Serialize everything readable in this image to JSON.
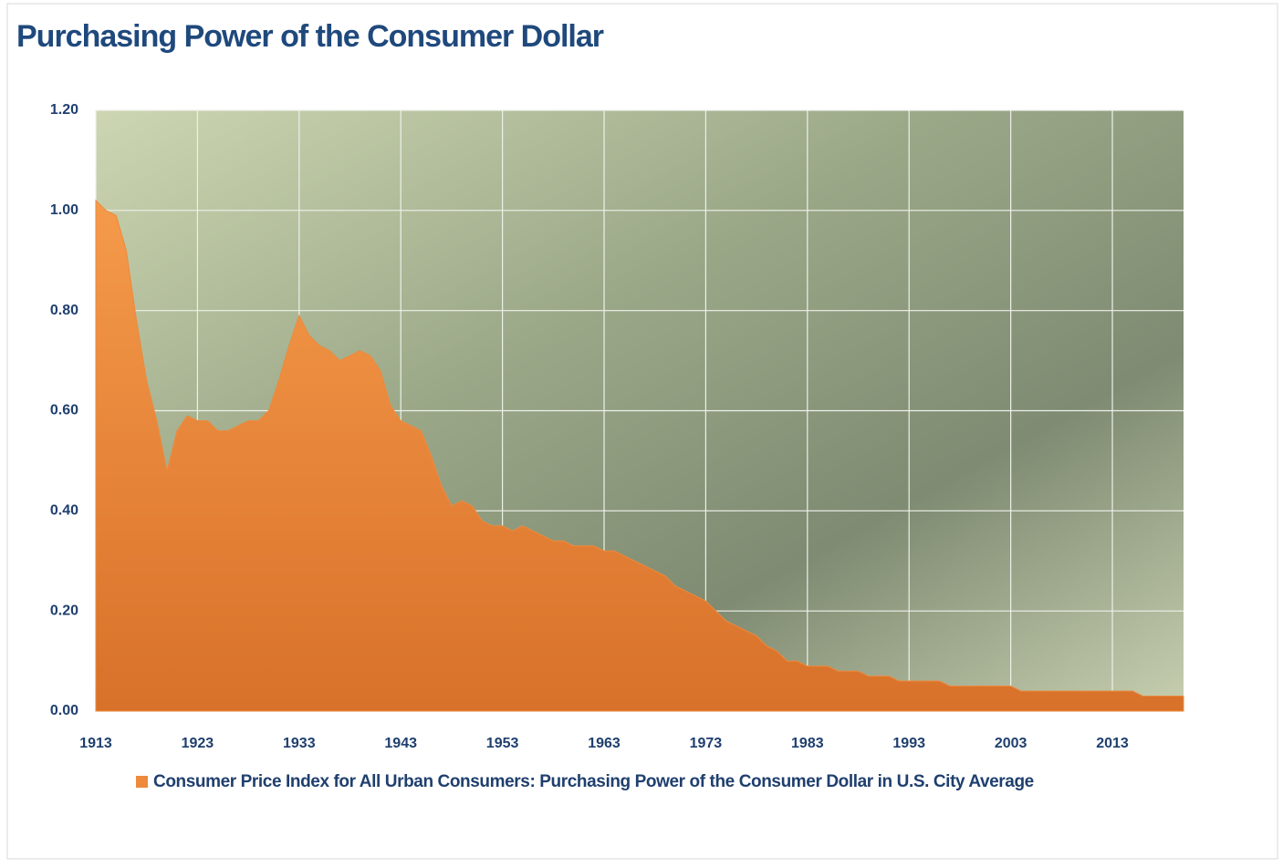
{
  "chart_data": {
    "type": "area",
    "title": "Purchasing Power of the Consumer Dollar",
    "x": [
      1913,
      1914,
      1915,
      1916,
      1917,
      1918,
      1919,
      1920,
      1921,
      1922,
      1923,
      1924,
      1925,
      1926,
      1927,
      1928,
      1929,
      1930,
      1931,
      1932,
      1933,
      1934,
      1935,
      1936,
      1937,
      1938,
      1939,
      1940,
      1941,
      1942,
      1943,
      1944,
      1945,
      1946,
      1947,
      1948,
      1949,
      1950,
      1951,
      1952,
      1953,
      1954,
      1955,
      1956,
      1957,
      1958,
      1959,
      1960,
      1961,
      1962,
      1963,
      1964,
      1965,
      1966,
      1967,
      1968,
      1969,
      1970,
      1971,
      1972,
      1973,
      1974,
      1975,
      1976,
      1977,
      1978,
      1979,
      1980,
      1981,
      1982,
      1983,
      1984,
      1985,
      1986,
      1987,
      1988,
      1989,
      1990,
      1991,
      1992,
      1993,
      1994,
      1995,
      1996,
      1997,
      1998,
      1999,
      2000,
      2001,
      2002,
      2003,
      2004,
      2005,
      2006,
      2007,
      2008,
      2009,
      2010,
      2011,
      2012,
      2013,
      2014,
      2015,
      2016,
      2017,
      2018,
      2019,
      2020
    ],
    "series": [
      {
        "name": "Consumer Price Index for All Urban Consumers: Purchasing Power of the Consumer Dollar in U.S. City Average",
        "color": "#ed8a3c",
        "values": [
          1.02,
          1.0,
          0.99,
          0.92,
          0.78,
          0.66,
          0.58,
          0.48,
          0.56,
          0.59,
          0.58,
          0.58,
          0.56,
          0.56,
          0.57,
          0.58,
          0.58,
          0.6,
          0.66,
          0.73,
          0.79,
          0.75,
          0.73,
          0.72,
          0.7,
          0.71,
          0.72,
          0.71,
          0.68,
          0.61,
          0.58,
          0.57,
          0.56,
          0.51,
          0.45,
          0.41,
          0.42,
          0.41,
          0.38,
          0.37,
          0.37,
          0.36,
          0.37,
          0.36,
          0.35,
          0.34,
          0.34,
          0.33,
          0.33,
          0.33,
          0.32,
          0.32,
          0.31,
          0.3,
          0.29,
          0.28,
          0.27,
          0.25,
          0.24,
          0.23,
          0.22,
          0.2,
          0.18,
          0.17,
          0.16,
          0.15,
          0.13,
          0.12,
          0.1,
          0.1,
          0.09,
          0.09,
          0.09,
          0.08,
          0.08,
          0.08,
          0.07,
          0.07,
          0.07,
          0.06,
          0.06,
          0.06,
          0.06,
          0.06,
          0.05,
          0.05,
          0.05,
          0.05,
          0.05,
          0.05,
          0.05,
          0.04,
          0.04,
          0.04,
          0.04,
          0.04,
          0.04,
          0.04,
          0.04,
          0.04,
          0.04,
          0.04,
          0.04,
          0.03,
          0.03,
          0.03,
          0.03,
          0.03
        ]
      }
    ],
    "xlim": [
      1913,
      2020
    ],
    "xticks": [
      1913,
      1923,
      1933,
      1943,
      1953,
      1963,
      1973,
      1983,
      1993,
      2003,
      2013
    ],
    "ylim": [
      0,
      1.2
    ],
    "yticks": [
      {
        "value": 0,
        "label": "0.00"
      },
      {
        "value": 0.2,
        "label": "0.20"
      },
      {
        "value": 0.4,
        "label": "0.40"
      },
      {
        "value": 0.6,
        "label": "0.60"
      },
      {
        "value": 0.8,
        "label": "0.80"
      },
      {
        "value": 1,
        "label": "1.00"
      },
      {
        "value": 1.2,
        "label": "1.20"
      }
    ],
    "grid": true,
    "legend": "bottom"
  }
}
